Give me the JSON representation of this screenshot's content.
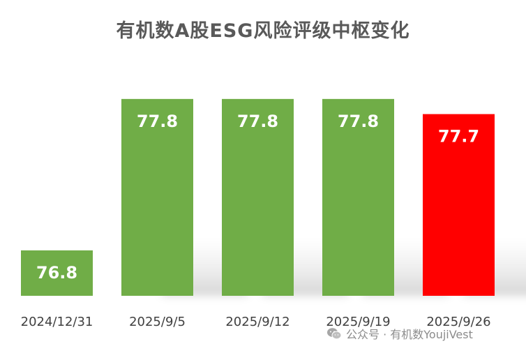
{
  "chart_data": {
    "type": "bar",
    "title": "有机数A股ESG风险评级中枢变化",
    "categories": [
      "2024/12/31",
      "2025/9/5",
      "2025/9/12",
      "2025/9/19",
      "2025/9/26"
    ],
    "values": [
      76.8,
      77.8,
      77.8,
      77.8,
      77.7
    ],
    "value_labels": [
      "76.8",
      "77.8",
      "77.8",
      "77.8",
      "77.7"
    ],
    "bar_colors": [
      "#70ad47",
      "#70ad47",
      "#70ad47",
      "#70ad47",
      "#ff0000"
    ],
    "data_label_color": "#ffffff",
    "tick_label_color": "#404040",
    "xlabel": "",
    "ylabel": "",
    "ylim": [
      76.5,
      77.85
    ],
    "grid": false,
    "legend": "none"
  },
  "watermark": {
    "text": "公众号 · 有机数YoujiVest",
    "icon": "wechat-icon"
  }
}
